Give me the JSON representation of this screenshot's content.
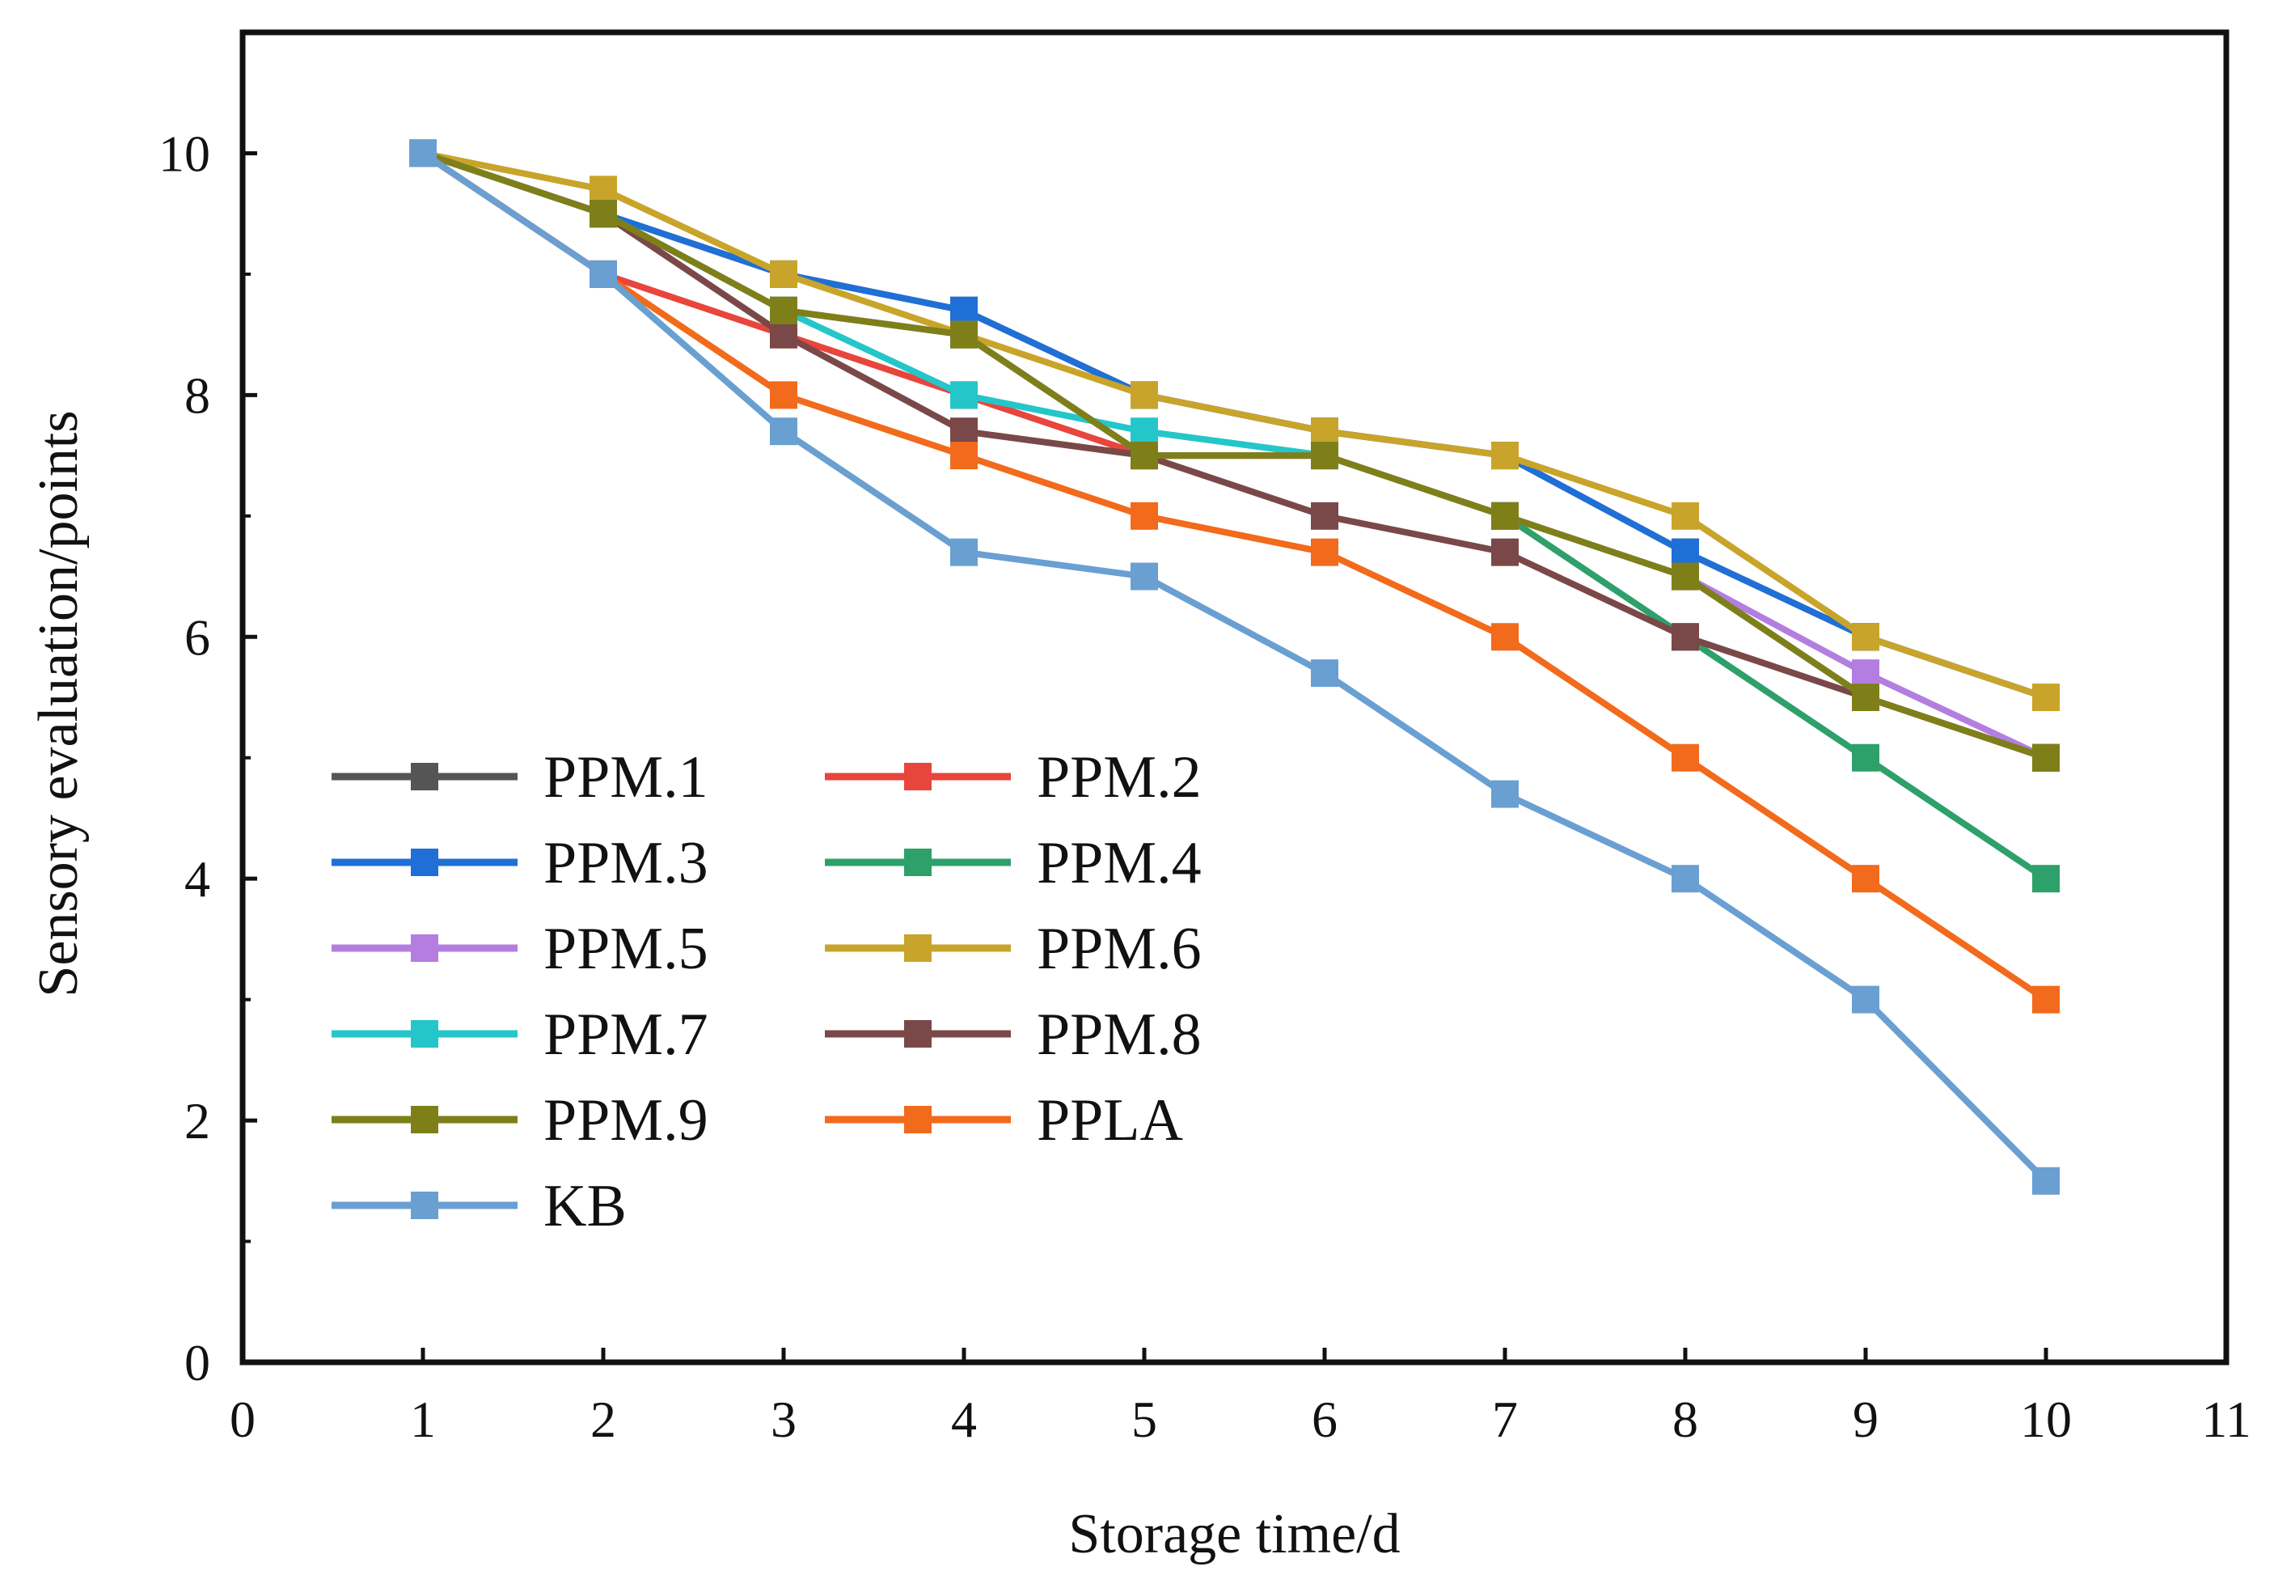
{
  "chart_data": {
    "type": "line",
    "title": "",
    "xlabel": "Storage time/d",
    "ylabel": "Sensory evaluation/points",
    "xlim": [
      0,
      11
    ],
    "ylim": [
      0,
      11
    ],
    "xticks": [
      0,
      1,
      2,
      3,
      4,
      5,
      6,
      7,
      8,
      9,
      10,
      11
    ],
    "yticks": [
      0,
      2,
      4,
      6,
      8,
      10
    ],
    "grid": false,
    "legend_position": "lower-left",
    "legend_columns": 2,
    "x": [
      1,
      2,
      3,
      4,
      5,
      6,
      7,
      8,
      9,
      10
    ],
    "series": [
      {
        "name": "PPM.1",
        "color": "#555555",
        "values": [
          10,
          9.5,
          9.0,
          8.7,
          8.0,
          7.7,
          7.5,
          6.7,
          6.0,
          5.5
        ]
      },
      {
        "name": "PPM.2",
        "color": "#e8453c",
        "values": [
          10,
          9.0,
          8.5,
          8.0,
          7.5,
          7.5,
          7.0,
          6.5,
          5.5,
          5.0
        ]
      },
      {
        "name": "PPM.3",
        "color": "#1f6fd6",
        "values": [
          10,
          9.5,
          9.0,
          8.7,
          8.0,
          7.7,
          7.5,
          6.7,
          6.0,
          5.5
        ]
      },
      {
        "name": "PPM.4",
        "color": "#2ea069",
        "values": [
          10,
          9.5,
          8.7,
          8.5,
          7.5,
          7.5,
          7.0,
          6.0,
          5.0,
          4.0
        ]
      },
      {
        "name": "PPM.5",
        "color": "#b47ee0",
        "values": [
          10,
          9.5,
          8.7,
          8.5,
          7.5,
          7.5,
          7.0,
          6.5,
          5.7,
          5.0
        ]
      },
      {
        "name": "PPM.6",
        "color": "#c9a42a",
        "values": [
          10,
          9.7,
          9.0,
          8.5,
          8.0,
          7.7,
          7.5,
          7.0,
          6.0,
          5.5
        ]
      },
      {
        "name": "PPM.7",
        "color": "#25c6c9",
        "values": [
          10,
          9.5,
          8.7,
          8.0,
          7.7,
          7.5,
          7.0,
          6.5,
          5.5,
          5.0
        ]
      },
      {
        "name": "PPM.8",
        "color": "#7a4848",
        "values": [
          10,
          9.5,
          8.5,
          7.7,
          7.5,
          7.0,
          6.7,
          6.0,
          5.5,
          5.0
        ]
      },
      {
        "name": "PPM.9",
        "color": "#7f7f19",
        "values": [
          10,
          9.5,
          8.7,
          8.5,
          7.5,
          7.5,
          7.0,
          6.5,
          5.5,
          5.0
        ]
      },
      {
        "name": "PPLA",
        "color": "#f26a1b",
        "values": [
          10,
          9.0,
          8.0,
          7.5,
          7.0,
          6.7,
          6.0,
          5.0,
          4.0,
          3.0
        ]
      },
      {
        "name": "KB",
        "color": "#6a9fd2",
        "values": [
          10,
          9.0,
          7.7,
          6.7,
          6.5,
          5.7,
          4.7,
          4.0,
          3.0,
          1.5
        ]
      }
    ]
  }
}
